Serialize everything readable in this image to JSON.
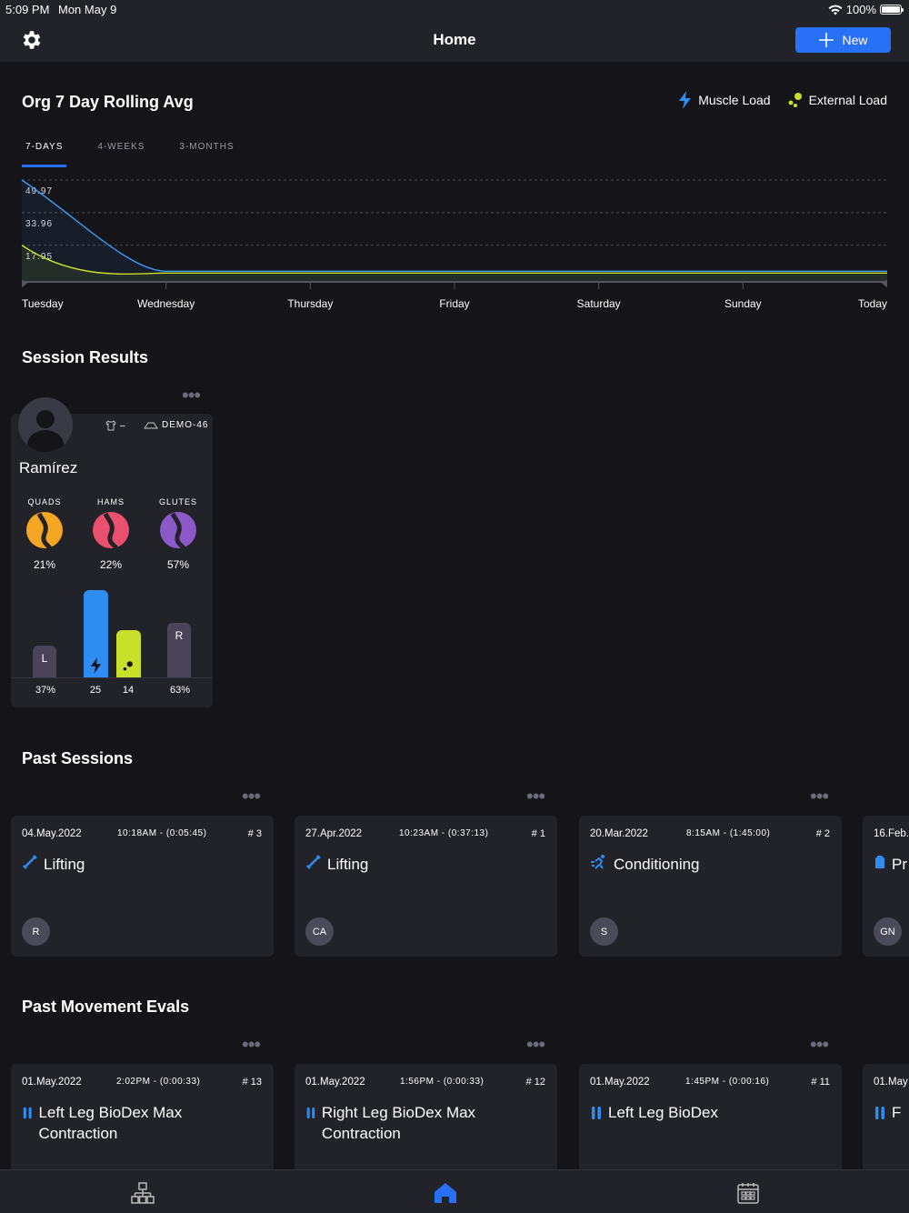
{
  "status": {
    "time": "5:09 PM",
    "date": "Mon May 9",
    "battery": "100%"
  },
  "nav": {
    "title": "Home",
    "new_label": "New"
  },
  "rolling": {
    "title": "Org 7 Day Rolling Avg",
    "legend": [
      "Muscle Load",
      "External Load"
    ],
    "tabs": [
      "7-DAYS",
      "4-WEEKS",
      "3-MONTHS"
    ],
    "active_tab": "7-DAYS"
  },
  "chart_data": {
    "type": "line",
    "x": [
      "Tuesday",
      "Wednesday",
      "Thursday",
      "Friday",
      "Saturday",
      "Sunday",
      "Today"
    ],
    "y_ticks": [
      "49.97",
      "33.96",
      "17.95"
    ],
    "series": [
      {
        "name": "Muscle Load",
        "color": "#3a9cf5",
        "values": [
          49.97,
          5.2,
          5.2,
          5.2,
          5.2,
          5.2,
          5.2
        ]
      },
      {
        "name": "External Load",
        "color": "#c8e02a",
        "values": [
          17.95,
          4.3,
          4.3,
          4.3,
          4.3,
          4.3,
          4.3
        ]
      }
    ],
    "ylim": [
      0,
      58
    ]
  },
  "session_results": {
    "title": "Session Results",
    "card": {
      "name": "Ramírez",
      "device_value": "–",
      "sensor": "DEMO-46",
      "muscles": [
        {
          "label": "QUADS",
          "pct": "21%",
          "color": "#f5a623"
        },
        {
          "label": "HAMS",
          "pct": "22%",
          "color": "#e9506e"
        },
        {
          "label": "GLUTES",
          "pct": "57%",
          "color": "#8c5ac8"
        }
      ],
      "bars": {
        "left": {
          "letter": "L",
          "value": "37%",
          "fraction": 0.37
        },
        "muscle": {
          "value": "25",
          "amount": 25
        },
        "external": {
          "value": "14",
          "amount": 14
        },
        "right": {
          "letter": "R",
          "value": "63%",
          "fraction": 0.63
        }
      }
    }
  },
  "past_sessions": {
    "title": "Past Sessions",
    "items": [
      {
        "date": "04.May.2022",
        "time": "10:18AM - (0:05:45)",
        "num": "# 3",
        "title": "Lifting",
        "icon": "dumbbell-icon",
        "badge": "R"
      },
      {
        "date": "27.Apr.2022",
        "time": "10:23AM - (0:37:13)",
        "num": "# 1",
        "title": "Lifting",
        "icon": "dumbbell-icon",
        "badge": "CA"
      },
      {
        "date": "20.Mar.2022",
        "time": "8:15AM - (1:45:00)",
        "num": "# 2",
        "title": "Conditioning",
        "icon": "runner-icon",
        "badge": "S"
      },
      {
        "date": "16.Feb.",
        "time": "",
        "num": "",
        "title": "Pr",
        "icon": "clipboard-icon",
        "badge": "GN"
      }
    ]
  },
  "past_evals": {
    "title": "Past Movement Evals",
    "items": [
      {
        "date": "01.May.2022",
        "time": "2:02PM - (0:00:33)",
        "num": "# 13",
        "title": "Left Leg BioDex Max Contraction"
      },
      {
        "date": "01.May.2022",
        "time": "1:56PM - (0:00:33)",
        "num": "# 12",
        "title": "Right Leg BioDex Max Contraction"
      },
      {
        "date": "01.May.2022",
        "time": "1:45PM - (0:00:16)",
        "num": "# 11",
        "title": "Left Leg BioDex"
      },
      {
        "date": "01.May",
        "time": "",
        "num": "",
        "title": "F"
      }
    ]
  }
}
